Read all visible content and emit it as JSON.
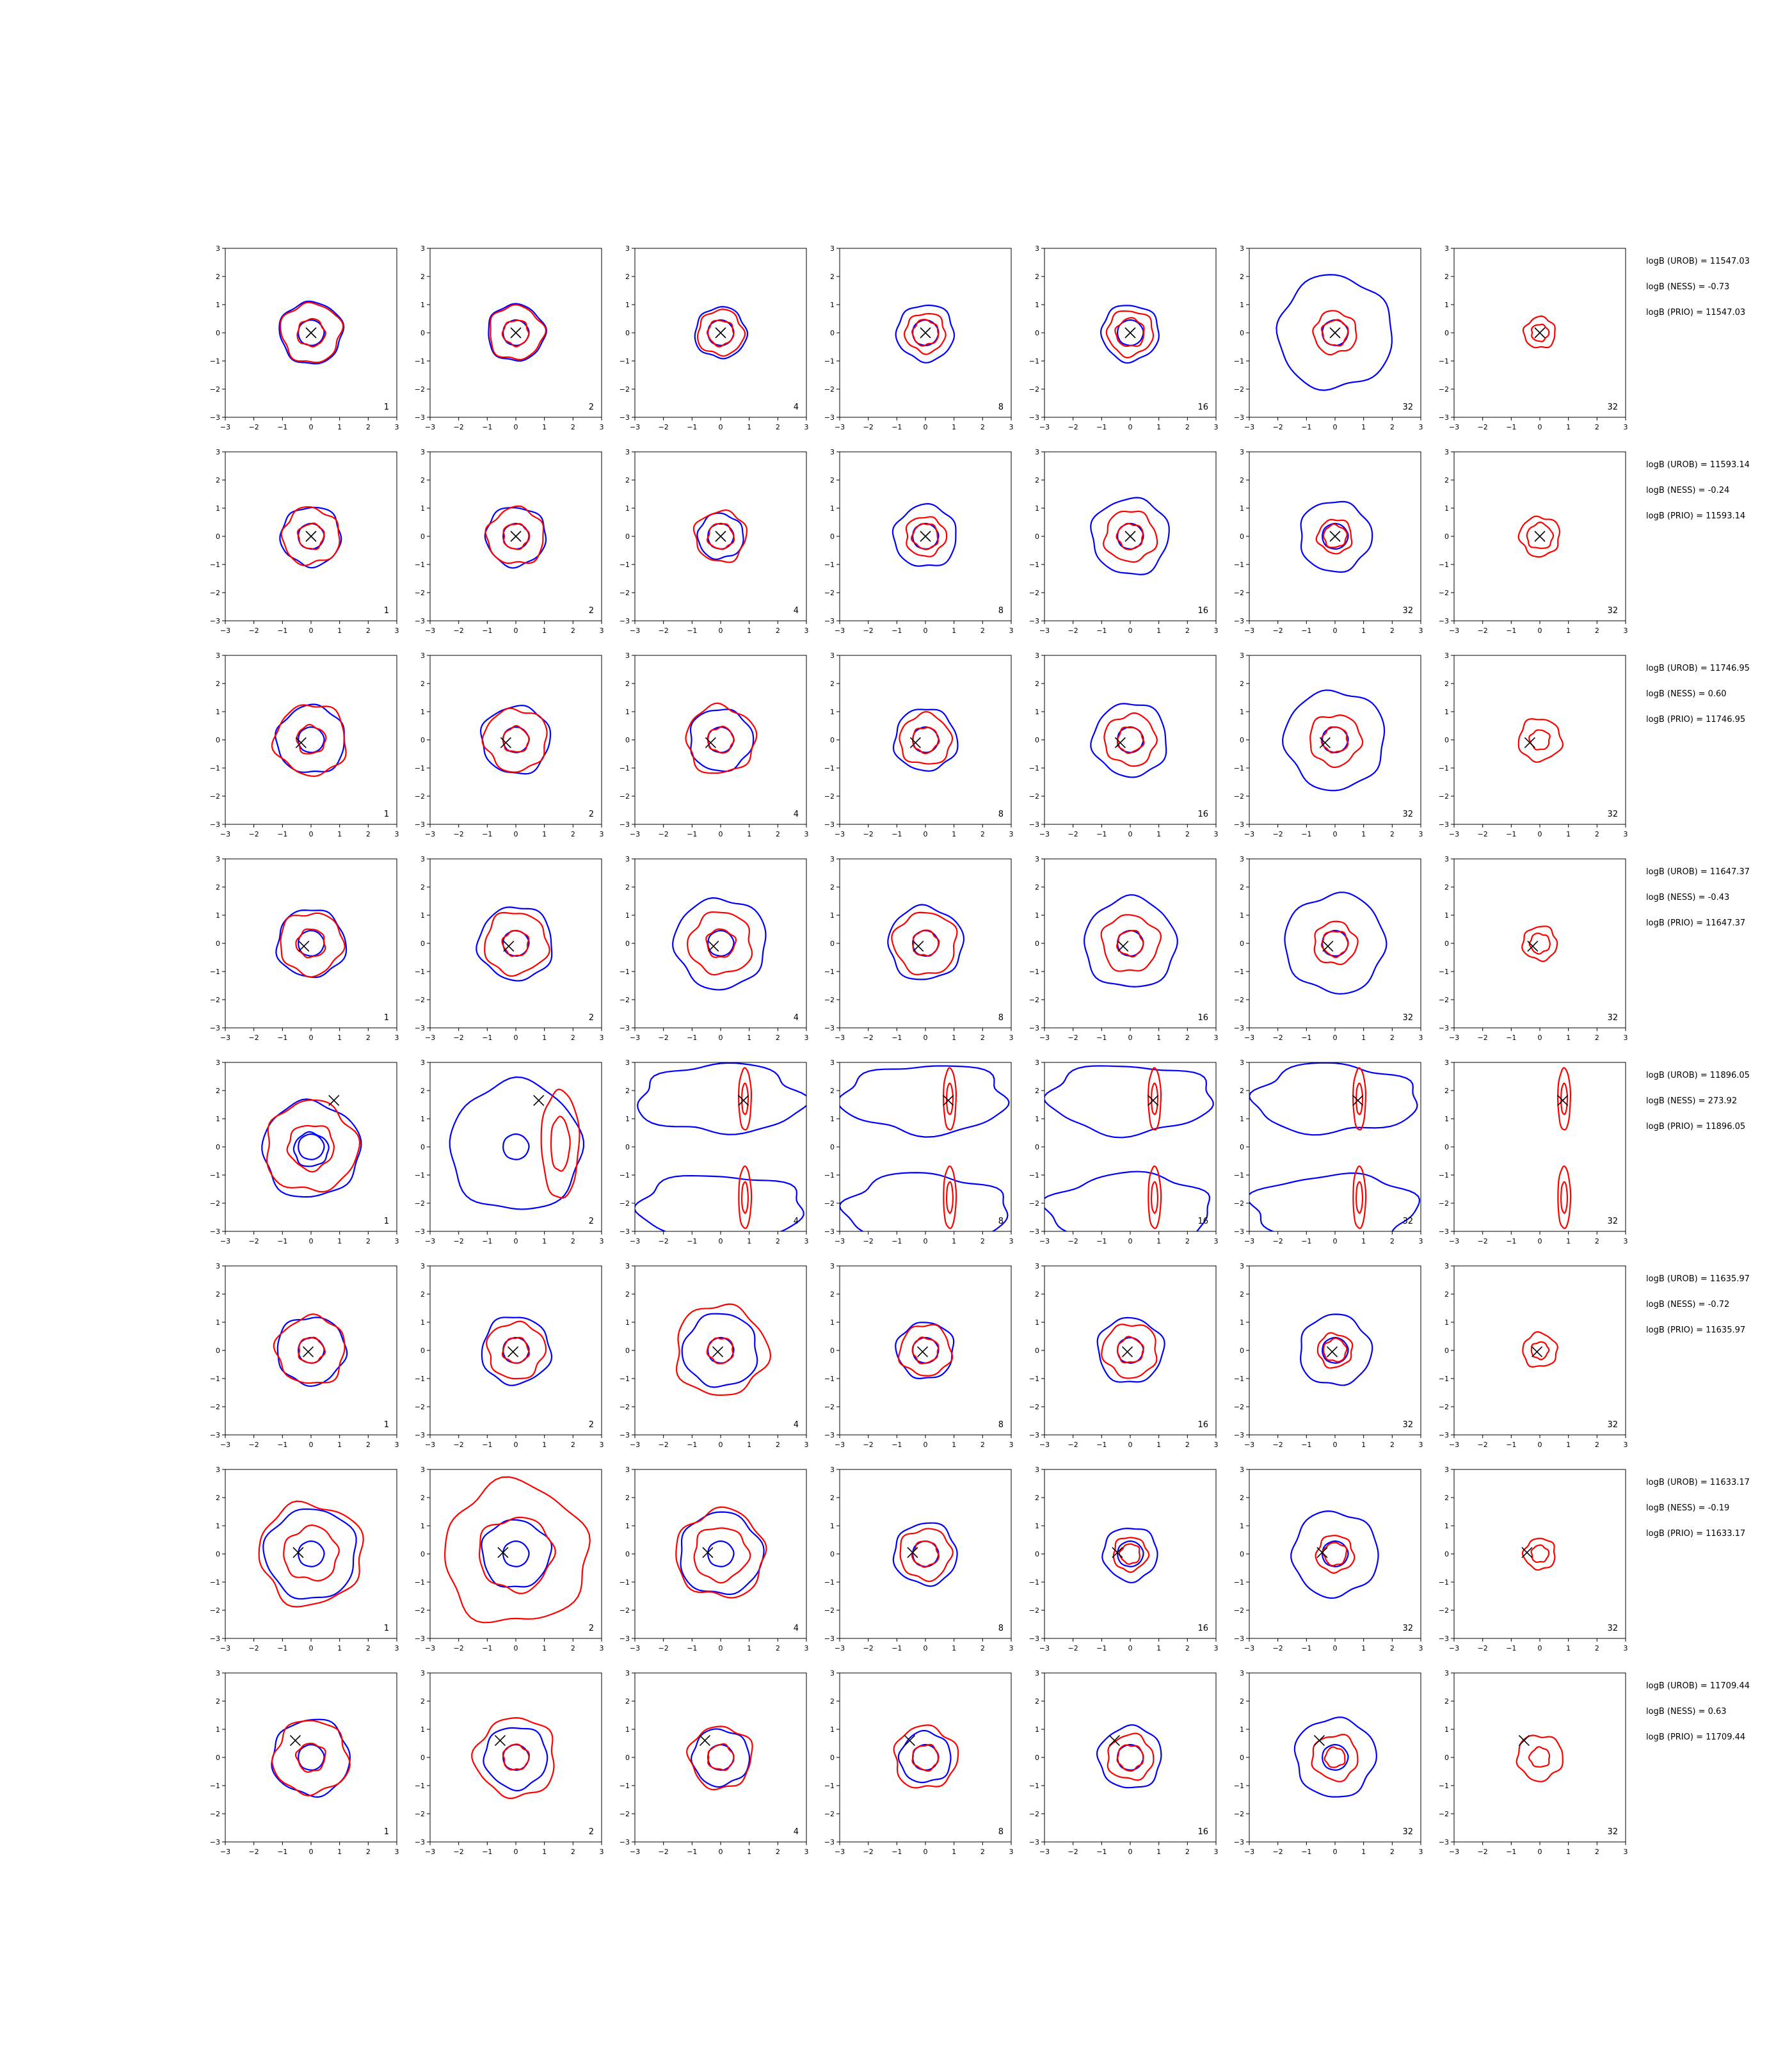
{
  "figure": {
    "colors": {
      "blue": "#0000ff",
      "red": "#ff0000",
      "axis": "#000000",
      "marker": "#000000"
    },
    "grid": false
  },
  "chart_data": {
    "type": "contour",
    "xlim": [
      -3,
      3
    ],
    "ylim": [
      -3,
      3
    ],
    "ticks": [
      -3,
      -2,
      -1,
      0,
      1,
      2,
      3
    ],
    "panel_labels": [
      "1",
      "2",
      "4",
      "8",
      "16",
      "32",
      "32"
    ],
    "rows": [
      {
        "marker": [
          0,
          0
        ],
        "annotations": [
          "logB (UROB) = 11547.03",
          "logB (NESS) = -0.73",
          "logB (PRIO) = 11547.03"
        ],
        "panels": [
          {
            "blue": [
              1.1
            ],
            "red": [
              1.05,
              0.48
            ]
          },
          {
            "blue": [
              1.0
            ],
            "red": [
              0.95,
              0.45
            ]
          },
          {
            "blue": [
              0.9
            ],
            "red": [
              0.8,
              0.45
            ]
          },
          {
            "blue": [
              1.0
            ],
            "red": [
              0.7,
              0.45
            ]
          },
          {
            "blue": [
              1.0
            ],
            "red": [
              0.8,
              0.5
            ]
          },
          {
            "blue": [
              2.0
            ],
            "red": [
              0.75,
              0.45
            ]
          },
          {
            "blue": [],
            "red": [
              0.55,
              0.3
            ]
          }
        ]
      },
      {
        "marker": [
          0,
          0
        ],
        "annotations": [
          "logB (UROB) = 11593.14",
          "logB (NESS) = -0.24",
          "logB (PRIO) = 11593.14"
        ],
        "panels": [
          {
            "blue": [
              1.05
            ],
            "red": [
              1.0,
              0.45
            ]
          },
          {
            "blue": [
              1.05
            ],
            "red": [
              1.0,
              0.45
            ]
          },
          {
            "blue": [
              0.8
            ],
            "red": [
              0.9,
              0.45
            ]
          },
          {
            "blue": [
              1.1
            ],
            "red": [
              0.7,
              0.45
            ]
          },
          {
            "blue": [
              1.35
            ],
            "red": [
              0.9,
              0.45
            ]
          },
          {
            "blue": [
              1.25
            ],
            "red": [
              0.6,
              0.4
            ]
          },
          {
            "blue": [],
            "red": [
              0.7,
              0.45
            ]
          }
        ]
      },
      {
        "marker": [
          -0.35,
          -0.1
        ],
        "annotations": [
          "logB (UROB) = 11746.95",
          "logB (NESS) = 0.60",
          "logB (PRIO) = 11746.95"
        ],
        "panels": [
          {
            "blue": [
              1.2
            ],
            "red": [
              1.25,
              0.5
            ]
          },
          {
            "blue": [
              1.2
            ],
            "red": [
              1.1,
              0.45
            ]
          },
          {
            "blue": [
              1.1
            ],
            "red": [
              1.2,
              0.45
            ]
          },
          {
            "blue": [
              1.1
            ],
            "red": [
              0.9,
              0.45
            ]
          },
          {
            "blue": [
              1.3
            ],
            "red": [
              0.9,
              0.45
            ]
          },
          {
            "blue": [
              1.75
            ],
            "red": [
              0.9,
              0.45
            ]
          },
          {
            "blue": [],
            "red": [
              0.75,
              0.35
            ]
          }
        ]
      },
      {
        "marker": [
          -0.25,
          -0.1
        ],
        "annotations": [
          "logB (UROB) = 11647.37",
          "logB (NESS) = -0.43",
          "logB (PRIO) = 11647.37"
        ],
        "panels": [
          {
            "blue": [
              1.2
            ],
            "red": [
              1.1,
              0.5
            ]
          },
          {
            "blue": [
              1.3
            ],
            "red": [
              1.1,
              0.45
            ]
          },
          {
            "blue": [
              1.6
            ],
            "red": [
              1.1,
              0.5
            ]
          },
          {
            "blue": [
              1.3
            ],
            "red": [
              1.1,
              0.45
            ]
          },
          {
            "blue": [
              1.6
            ],
            "red": [
              1.0,
              0.45
            ]
          },
          {
            "blue": [
              1.75
            ],
            "red": [
              0.75,
              0.45
            ]
          },
          {
            "blue": [],
            "red": [
              0.6,
              0.35
            ]
          }
        ]
      },
      {
        "marker": [
          0.8,
          1.65
        ],
        "annotations": [
          "logB (UROB) = 11896.05",
          "logB (NESS) = 273.92",
          "logB (PRIO) = 11896.05"
        ],
        "panels": [
          {
            "blue": [
              1.7,
              0.6
            ],
            "red": [
              1.6,
              0.8
            ]
          },
          {
            "blue": [
              2.3
            ],
            "red": [
              1.2,
              0.6
            ]
          },
          {
            "blue": [
              2.6
            ],
            "red": [
              1.0,
              0.5
            ]
          },
          {
            "blue": [
              2.6
            ],
            "red": [
              1.0,
              0.5
            ]
          },
          {
            "blue": [
              2.6
            ],
            "red": [
              1.0,
              0.5
            ]
          },
          {
            "blue": [
              2.6
            ],
            "red": [
              1.0,
              0.5
            ]
          },
          {
            "blue": [],
            "red": [
              1.0,
              0.5
            ]
          }
        ]
      },
      {
        "marker": [
          -0.1,
          -0.05
        ],
        "annotations": [
          "logB (UROB) = 11635.97",
          "logB (NESS) = -0.72",
          "logB (PRIO) = 11635.97"
        ],
        "panels": [
          {
            "blue": [
              1.2
            ],
            "red": [
              1.2,
              0.45
            ]
          },
          {
            "blue": [
              1.2
            ],
            "red": [
              1.0,
              0.45
            ]
          },
          {
            "blue": [
              1.3
            ],
            "red": [
              1.6,
              0.45
            ]
          },
          {
            "blue": [
              1.0
            ],
            "red": [
              0.9,
              0.45
            ]
          },
          {
            "blue": [
              1.15
            ],
            "red": [
              0.95,
              0.45
            ]
          },
          {
            "blue": [
              1.25
            ],
            "red": [
              0.6,
              0.4
            ]
          },
          {
            "blue": [],
            "red": [
              0.6,
              0.3
            ]
          }
        ]
      },
      {
        "marker": [
          -0.45,
          0.05
        ],
        "annotations": [
          "logB (UROB) = 11633.17",
          "logB (NESS) = -0.19",
          "logB (PRIO) = 11633.17"
        ],
        "panels": [
          {
            "blue": [
              1.6
            ],
            "red": [
              1.8,
              0.95
            ]
          },
          {
            "blue": [
              1.2
            ],
            "red": [
              2.5,
              1.3
            ]
          },
          {
            "blue": [
              1.45
            ],
            "red": [
              1.55,
              0.95
            ]
          },
          {
            "blue": [
              1.1
            ],
            "red": [
              0.9,
              0.45
            ]
          },
          {
            "blue": [
              0.95
            ],
            "red": [
              0.6,
              0.35
            ]
          },
          {
            "blue": [
              1.5
            ],
            "red": [
              0.65,
              0.4
            ]
          },
          {
            "blue": [],
            "red": [
              0.55,
              0.3
            ]
          }
        ]
      },
      {
        "marker": [
          -0.55,
          0.6
        ],
        "annotations": [
          "logB (UROB) = 11709.44",
          "logB (NESS) = 0.63",
          "logB (PRIO) = 11709.44"
        ],
        "panels": [
          {
            "blue": [
              1.35
            ],
            "red": [
              1.3,
              0.5
            ]
          },
          {
            "blue": [
              1.1
            ],
            "red": [
              1.4,
              0.45
            ]
          },
          {
            "blue": [
              1.0
            ],
            "red": [
              1.1,
              0.45
            ]
          },
          {
            "blue": [
              0.9
            ],
            "red": [
              1.1,
              0.45
            ]
          },
          {
            "blue": [
              1.1
            ],
            "red": [
              0.8,
              0.45
            ]
          },
          {
            "blue": [
              1.4
            ],
            "red": [
              0.8,
              0.35
            ]
          },
          {
            "blue": [],
            "red": [
              0.8,
              0.35
            ]
          }
        ]
      }
    ]
  }
}
